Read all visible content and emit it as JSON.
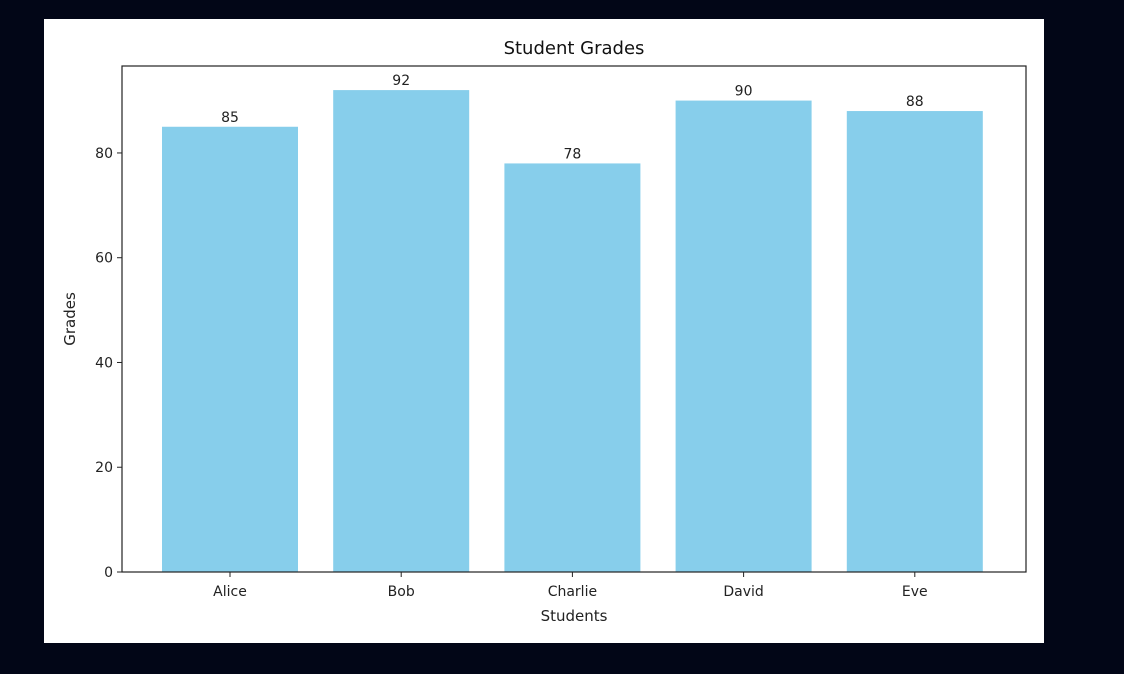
{
  "chart_data": {
    "type": "bar",
    "title": "Student Grades",
    "xlabel": "Students",
    "ylabel": "Grades",
    "categories": [
      "Alice",
      "Bob",
      "Charlie",
      "David",
      "Eve"
    ],
    "values": [
      85,
      92,
      78,
      90,
      88
    ],
    "value_labels": [
      "85",
      "92",
      "78",
      "90",
      "88"
    ],
    "ylim": [
      0,
      96.6
    ],
    "yticks": [
      0,
      20,
      40,
      60,
      80
    ],
    "ytick_labels": [
      "0",
      "20",
      "40",
      "60",
      "80"
    ],
    "grid": false,
    "bar_color": "#87CEEB",
    "axis_color": "#222222",
    "background": "#ffffff"
  }
}
